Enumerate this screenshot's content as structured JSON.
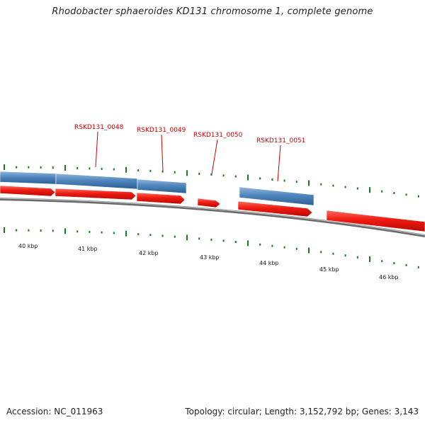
{
  "title": "Rhodobacter sphaeroides KD131 chromosome 1, complete genome",
  "footer": {
    "accession": "Accession: NC_011963",
    "summary": "Topology: circular; Length: 3,152,792 bp; Genes: 3,143"
  },
  "colors": {
    "forward_gene": "#e8170f",
    "reverse_gene": "#4a7fb5",
    "backbone": "#777777",
    "gc_tick": "#1a7a1a",
    "label": "#cc0000"
  },
  "scale": {
    "labels": [
      "40 kbp",
      "41 kbp",
      "42 kbp",
      "43 kbp",
      "44 kbp",
      "45 kbp",
      "46 kbp"
    ]
  },
  "gene_labels": [
    "RSKD131_0048",
    "RSKD131_0049",
    "RSKD131_0050",
    "RSKD131_0051"
  ]
}
